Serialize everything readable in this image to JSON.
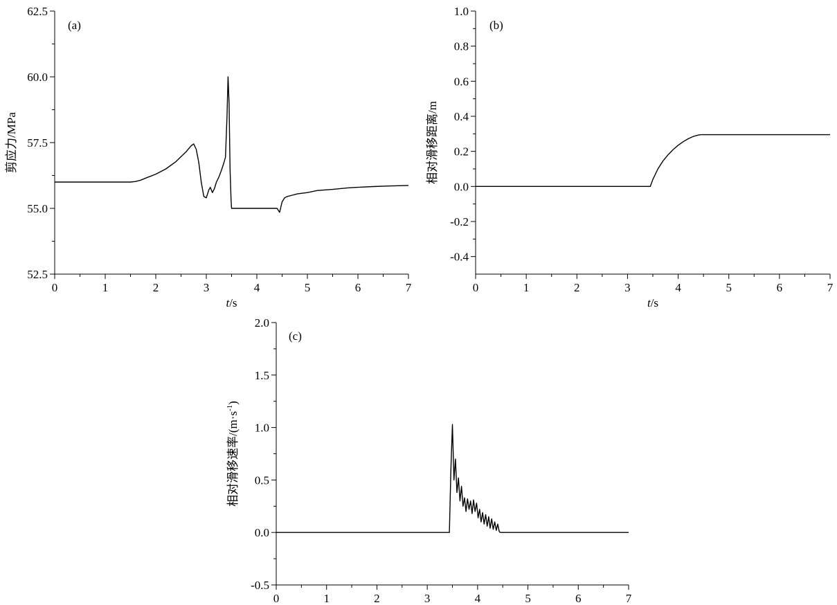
{
  "chart_data": [
    {
      "panel": "(a)",
      "type": "line",
      "xlabel_italic": "t",
      "xlabel_rest": "/s",
      "ylabel": "剪应力/MPa",
      "xlim": [
        0,
        7
      ],
      "ylim": [
        52.5,
        62.5
      ],
      "xticks": [
        0,
        1,
        2,
        3,
        4,
        5,
        6,
        7
      ],
      "yticks": [
        52.5,
        55.0,
        57.5,
        60.0,
        62.5
      ],
      "ytick_labels": [
        "52.5",
        "55.0",
        "57.5",
        "60.0",
        "62.5"
      ],
      "grid": false,
      "series": [
        {
          "color": "#000000",
          "x": [
            0.0,
            1.0,
            1.5,
            1.6,
            1.7,
            1.8,
            2.0,
            2.2,
            2.4,
            2.6,
            2.7,
            2.75,
            2.8,
            2.85,
            2.9,
            2.95,
            3.0,
            3.05,
            3.08,
            3.12,
            3.16,
            3.2,
            3.25,
            3.3,
            3.35,
            3.38,
            3.41,
            3.43,
            3.45,
            3.47,
            3.49,
            3.5,
            3.6,
            3.8,
            4.0,
            4.2,
            4.4,
            4.45,
            4.5,
            4.55,
            4.6,
            4.7,
            4.8,
            5.0,
            5.2,
            5.5,
            5.8,
            6.0,
            6.3,
            6.6,
            7.0
          ],
          "y": [
            56.0,
            56.0,
            56.0,
            56.02,
            56.07,
            56.15,
            56.3,
            56.5,
            56.78,
            57.15,
            57.38,
            57.45,
            57.25,
            56.75,
            56.0,
            55.45,
            55.4,
            55.7,
            55.8,
            55.6,
            55.75,
            56.0,
            56.2,
            56.45,
            56.75,
            56.95,
            58.5,
            60.0,
            59.0,
            56.5,
            55.3,
            55.0,
            55.0,
            55.0,
            55.0,
            55.0,
            55.0,
            54.85,
            55.25,
            55.4,
            55.45,
            55.5,
            55.55,
            55.6,
            55.68,
            55.72,
            55.78,
            55.8,
            55.83,
            55.85,
            55.87
          ]
        }
      ]
    },
    {
      "panel": "(b)",
      "type": "line",
      "xlabel_italic": "t",
      "xlabel_rest": "/s",
      "ylabel": "相对滑移距离/m",
      "xlim": [
        0,
        7
      ],
      "ylim": [
        -0.5,
        1.0
      ],
      "xticks": [
        0,
        1,
        2,
        3,
        4,
        5,
        6,
        7
      ],
      "yticks": [
        -0.4,
        -0.2,
        0.0,
        0.2,
        0.4,
        0.6,
        0.8,
        1.0
      ],
      "ytick_labels": [
        "-0.4",
        "-0.2",
        "0.0",
        "0.2",
        "0.4",
        "0.6",
        "0.8",
        "1.0"
      ],
      "grid": false,
      "series": [
        {
          "color": "#000000",
          "x": [
            0.0,
            3.0,
            3.45,
            3.5,
            3.6,
            3.7,
            3.8,
            3.9,
            4.0,
            4.1,
            4.2,
            4.3,
            4.4,
            4.45,
            5.0,
            6.0,
            7.0
          ],
          "y": [
            0.0,
            0.0,
            0.0,
            0.04,
            0.1,
            0.145,
            0.18,
            0.21,
            0.235,
            0.255,
            0.272,
            0.285,
            0.293,
            0.295,
            0.295,
            0.295,
            0.295
          ]
        }
      ]
    },
    {
      "panel": "(c)",
      "type": "line",
      "xlabel_italic": "",
      "xlabel_rest": "",
      "ylabel": "相对滑移速率/(m·s",
      "ylabel_sup": "-1",
      "ylabel_tail": ")",
      "xlim": [
        0,
        7
      ],
      "ylim": [
        -0.5,
        2.0
      ],
      "xticks": [
        0,
        1,
        2,
        3,
        4,
        5,
        6,
        7
      ],
      "yticks": [
        -0.5,
        0.0,
        0.5,
        1.0,
        1.5,
        2.0
      ],
      "ytick_labels": [
        "-0.5",
        "0.0",
        "0.5",
        "1.0",
        "1.5",
        "2.0"
      ],
      "grid": false,
      "series": [
        {
          "color": "#000000",
          "x": [
            0.0,
            3.0,
            3.44,
            3.47,
            3.5,
            3.53,
            3.56,
            3.59,
            3.62,
            3.65,
            3.68,
            3.71,
            3.74,
            3.77,
            3.8,
            3.83,
            3.86,
            3.89,
            3.92,
            3.95,
            3.98,
            4.01,
            4.04,
            4.07,
            4.1,
            4.13,
            4.16,
            4.19,
            4.22,
            4.25,
            4.28,
            4.31,
            4.34,
            4.37,
            4.4,
            4.43,
            4.45,
            5.0,
            6.0,
            7.0
          ],
          "y": [
            0.0,
            0.0,
            0.0,
            0.6,
            1.03,
            0.5,
            0.7,
            0.38,
            0.52,
            0.3,
            0.44,
            0.25,
            0.33,
            0.2,
            0.32,
            0.22,
            0.3,
            0.18,
            0.31,
            0.2,
            0.28,
            0.14,
            0.22,
            0.1,
            0.19,
            0.08,
            0.17,
            0.06,
            0.15,
            0.04,
            0.13,
            0.03,
            0.1,
            0.02,
            0.08,
            0.01,
            0.0,
            0.0,
            0.0,
            0.0
          ]
        }
      ]
    }
  ]
}
